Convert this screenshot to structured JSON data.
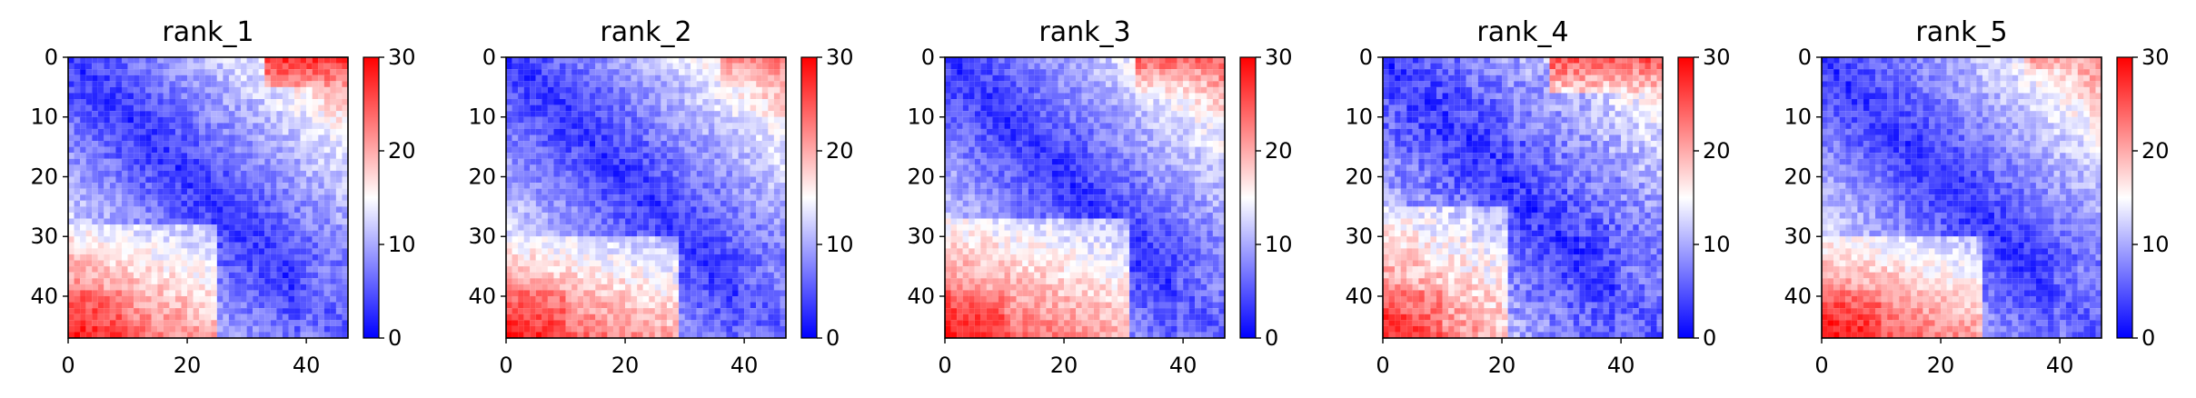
{
  "chart_data": [
    {
      "type": "heatmap",
      "title": "rank_1",
      "rows": 47,
      "cols": 47,
      "colormap": "bwr",
      "colormap_colors": [
        "#0000ff",
        "#ffffff",
        "#ff0000"
      ],
      "vmin": 0,
      "vmax": 30,
      "x_ticks": [
        0,
        20,
        40
      ],
      "y_ticks": [
        0,
        10,
        20,
        30,
        40
      ],
      "colorbar_ticks": [
        0,
        10,
        20,
        30
      ],
      "xlim": [
        0,
        47
      ],
      "ylim": [
        47,
        0
      ],
      "pattern": {
        "offdiag_gain": 0.35,
        "near_diag_min": 3,
        "corner_ul_gain": 0.28,
        "corner_ul_min_col": 32,
        "lower_left_block_rows": [
          28,
          46
        ],
        "lower_left_block_cols": [
          0,
          24
        ],
        "lower_left_value": 27,
        "upper_right_block_rows": [
          0,
          4
        ],
        "upper_right_block_cols": [
          33,
          46
        ],
        "upper_right_value": 27,
        "noise": 2.5
      }
    },
    {
      "type": "heatmap",
      "title": "rank_2",
      "rows": 47,
      "cols": 47,
      "colormap": "bwr",
      "colormap_colors": [
        "#0000ff",
        "#ffffff",
        "#ff0000"
      ],
      "vmin": 0,
      "vmax": 30,
      "x_ticks": [
        0,
        20,
        40
      ],
      "y_ticks": [
        0,
        10,
        20,
        30,
        40
      ],
      "colorbar_ticks": [
        0,
        10,
        20,
        30
      ],
      "xlim": [
        0,
        47
      ],
      "ylim": [
        47,
        0
      ],
      "pattern": {
        "offdiag_gain": 0.34,
        "near_diag_min": 3,
        "corner_ul_gain": 0.26,
        "corner_ul_min_col": 30,
        "lower_left_block_rows": [
          30,
          46
        ],
        "lower_left_block_cols": [
          0,
          28
        ],
        "lower_left_value": 27,
        "upper_right_block_rows": [
          0,
          3
        ],
        "upper_right_block_cols": [
          36,
          46
        ],
        "upper_right_value": 22,
        "noise": 2.5
      }
    },
    {
      "type": "heatmap",
      "title": "rank_3",
      "rows": 47,
      "cols": 47,
      "colormap": "bwr",
      "colormap_colors": [
        "#0000ff",
        "#ffffff",
        "#ff0000"
      ],
      "vmin": 0,
      "vmax": 30,
      "x_ticks": [
        0,
        20,
        40
      ],
      "y_ticks": [
        0,
        10,
        20,
        30,
        40
      ],
      "colorbar_ticks": [
        0,
        10,
        20,
        30
      ],
      "xlim": [
        0,
        47
      ],
      "ylim": [
        47,
        0
      ],
      "pattern": {
        "offdiag_gain": 0.34,
        "near_diag_min": 3,
        "corner_ul_gain": 0.3,
        "corner_ul_min_col": 28,
        "lower_left_block_rows": [
          27,
          46
        ],
        "lower_left_block_cols": [
          0,
          30
        ],
        "lower_left_value": 27,
        "upper_right_block_rows": [
          0,
          5
        ],
        "upper_right_block_cols": [
          32,
          46
        ],
        "upper_right_value": 24,
        "noise": 2.5
      }
    },
    {
      "type": "heatmap",
      "title": "rank_4",
      "rows": 47,
      "cols": 47,
      "colormap": "bwr",
      "colormap_colors": [
        "#0000ff",
        "#ffffff",
        "#ff0000"
      ],
      "vmin": 0,
      "vmax": 30,
      "x_ticks": [
        0,
        20,
        40
      ],
      "y_ticks": [
        0,
        10,
        20,
        30,
        40
      ],
      "colorbar_ticks": [
        0,
        10,
        20,
        30
      ],
      "xlim": [
        0,
        47
      ],
      "ylim": [
        47,
        0
      ],
      "pattern": {
        "offdiag_gain": 0.3,
        "near_diag_min": 3,
        "corner_ul_gain": 0.27,
        "corner_ul_min_col": 34,
        "lower_left_block_rows": [
          25,
          46
        ],
        "lower_left_block_cols": [
          0,
          20
        ],
        "lower_left_value": 26,
        "upper_right_block_rows": [
          0,
          5
        ],
        "upper_right_block_cols": [
          28,
          46
        ],
        "upper_right_value": 25,
        "noise": 3
      }
    },
    {
      "type": "heatmap",
      "title": "rank_5",
      "rows": 47,
      "cols": 47,
      "colormap": "bwr",
      "colormap_colors": [
        "#0000ff",
        "#ffffff",
        "#ff0000"
      ],
      "vmin": 0,
      "vmax": 30,
      "x_ticks": [
        0,
        20,
        40
      ],
      "y_ticks": [
        0,
        10,
        20,
        30,
        40
      ],
      "colorbar_ticks": [
        0,
        10,
        20,
        30
      ],
      "xlim": [
        0,
        47
      ],
      "ylim": [
        47,
        0
      ],
      "pattern": {
        "offdiag_gain": 0.34,
        "near_diag_min": 3,
        "corner_ul_gain": 0.24,
        "corner_ul_min_col": 32,
        "lower_left_block_rows": [
          30,
          46
        ],
        "lower_left_block_cols": [
          0,
          26
        ],
        "lower_left_value": 28,
        "upper_right_block_rows": [
          0,
          4
        ],
        "upper_right_block_cols": [
          34,
          46
        ],
        "upper_right_value": 20,
        "noise": 2.5
      }
    }
  ]
}
